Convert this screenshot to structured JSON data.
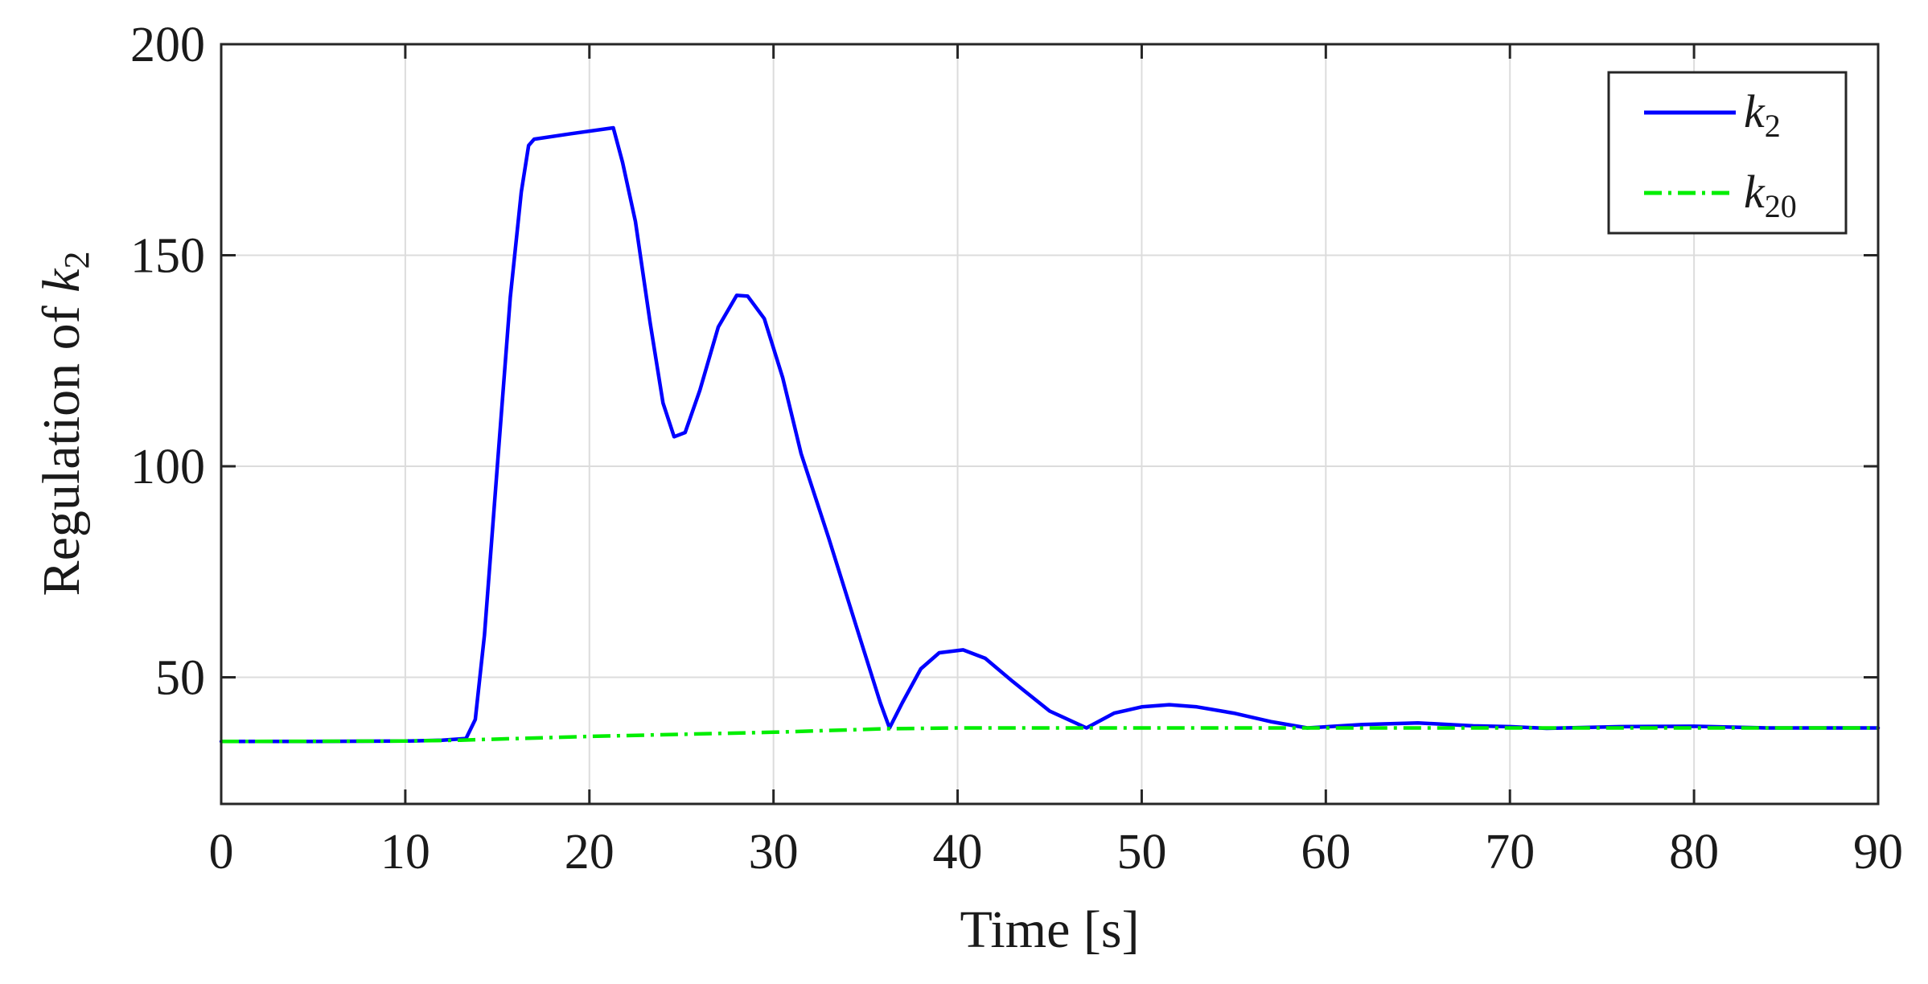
{
  "chart_data": {
    "type": "line",
    "xlabel": "Time [s]",
    "ylabel_prefix": "Regulation of ",
    "ylabel_var": "k",
    "ylabel_sub": "2",
    "xlim": [
      0,
      90
    ],
    "ylim": [
      20,
      200
    ],
    "xticks": [
      0,
      10,
      20,
      30,
      40,
      50,
      60,
      70,
      80,
      90
    ],
    "yticks": [
      50,
      100,
      150,
      200
    ],
    "grid": true,
    "legend_position": "top-right",
    "series": [
      {
        "name": "k2",
        "legend_var": "k",
        "legend_sub": "2",
        "color": "#0000ff",
        "style": "solid",
        "x": [
          0,
          5,
          10,
          12,
          13.3,
          13.8,
          14.3,
          15.0,
          15.7,
          16.3,
          16.7,
          17.0,
          19.0,
          21.3,
          21.8,
          22.5,
          23.3,
          24.0,
          24.6,
          25.2,
          26.0,
          27.0,
          28.0,
          28.6,
          29.5,
          30.5,
          31.5,
          33.0,
          34.5,
          35.8,
          36.3,
          37.0,
          38.0,
          39.0,
          40.3,
          41.5,
          43.0,
          45.0,
          47.0,
          48.5,
          50.0,
          51.5,
          53.0,
          55.0,
          57.0,
          59.0,
          62.0,
          65.0,
          68.0,
          70.0,
          72.0,
          76.0,
          80.0,
          84.0,
          90.0
        ],
        "y": [
          34.8,
          34.8,
          34.9,
          35.1,
          35.5,
          40,
          60,
          100,
          140,
          165,
          176,
          177.5,
          178.8,
          180.2,
          172,
          158,
          134,
          115,
          107,
          108,
          118,
          133,
          140.5,
          140.3,
          135,
          121,
          103,
          83,
          62,
          44,
          38,
          44,
          52,
          55.8,
          56.5,
          54.5,
          49,
          42,
          38,
          41.5,
          43,
          43.5,
          43,
          41.5,
          39.5,
          38,
          38.8,
          39.2,
          38.5,
          38.3,
          37.9,
          38.3,
          38.4,
          38.0,
          38.0
        ]
      },
      {
        "name": "k20",
        "legend_var": "k",
        "legend_sub": "20",
        "color": "#00ee00",
        "style": "dashdot",
        "x": [
          0,
          10,
          13,
          20,
          30,
          36,
          40,
          50,
          60,
          70,
          80,
          90
        ],
        "y": [
          34.8,
          34.9,
          35.1,
          36.0,
          37.0,
          37.8,
          38.0,
          38.0,
          38.0,
          38.0,
          38.0,
          38.0
        ]
      }
    ]
  }
}
